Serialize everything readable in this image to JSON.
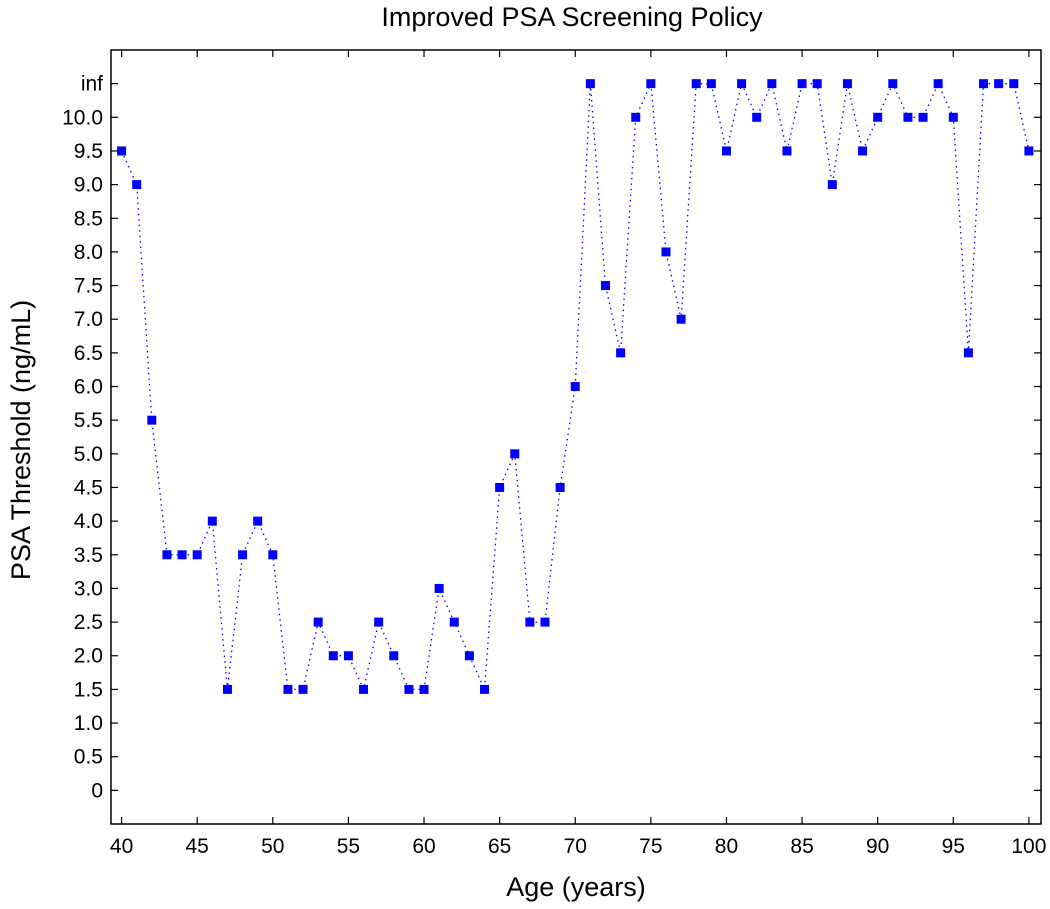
{
  "chart_data": {
    "type": "line",
    "title": "Improved PSA Screening Policy",
    "xlabel": "Age (years)",
    "ylabel": "PSA Threshold (ng/mL)",
    "xlim": [
      39.3,
      100.8
    ],
    "ylim": [
      -0.5,
      11.0
    ],
    "x_ticks": [
      "40",
      "45",
      "50",
      "55",
      "60",
      "65",
      "70",
      "75",
      "80",
      "85",
      "90",
      "95",
      "100"
    ],
    "x_tick_values": [
      40,
      45,
      50,
      55,
      60,
      65,
      70,
      75,
      80,
      85,
      90,
      95,
      100
    ],
    "y_ticks": [
      "0",
      "0.5",
      "1.0",
      "1.5",
      "2.0",
      "2.5",
      "3.0",
      "3.5",
      "4.0",
      "4.5",
      "5.0",
      "5.5",
      "6.0",
      "6.5",
      "7.0",
      "7.5",
      "8.0",
      "8.5",
      "9.0",
      "9.5",
      "10.0",
      "inf"
    ],
    "y_tick_values": [
      0,
      0.5,
      1.0,
      1.5,
      2.0,
      2.5,
      3.0,
      3.5,
      4.0,
      4.5,
      5.0,
      5.5,
      6.0,
      6.5,
      7.0,
      7.5,
      8.0,
      8.5,
      9.0,
      9.5,
      10.0,
      10.5
    ],
    "inf_plot_value": 10.5,
    "series": [
      {
        "name": "PSA threshold",
        "color": "#0000ff",
        "line_style": "dotted",
        "marker": "square",
        "x": [
          40,
          41,
          42,
          43,
          44,
          45,
          46,
          47,
          48,
          49,
          50,
          51,
          52,
          53,
          54,
          55,
          56,
          57,
          58,
          59,
          60,
          61,
          62,
          63,
          64,
          65,
          66,
          67,
          68,
          69,
          70,
          71,
          72,
          73,
          74,
          75,
          76,
          77,
          78,
          79,
          80,
          81,
          82,
          83,
          84,
          85,
          86,
          87,
          88,
          89,
          90,
          91,
          92,
          93,
          94,
          95,
          96,
          97,
          98,
          99,
          100
        ],
        "y": [
          9.5,
          9.0,
          5.5,
          3.5,
          3.5,
          3.5,
          4.0,
          1.5,
          3.5,
          4.0,
          3.5,
          1.5,
          1.5,
          2.5,
          2.0,
          2.0,
          1.5,
          2.5,
          2.0,
          1.5,
          1.5,
          3.0,
          2.5,
          2.0,
          1.5,
          4.5,
          5.0,
          2.5,
          2.5,
          4.5,
          6.0,
          "inf",
          7.5,
          6.5,
          10.0,
          "inf",
          8.0,
          7.0,
          "inf",
          "inf",
          9.5,
          "inf",
          10.0,
          "inf",
          9.5,
          "inf",
          "inf",
          9.0,
          "inf",
          9.5,
          10.0,
          "inf",
          10.0,
          10.0,
          "inf",
          10.0,
          6.5,
          "inf",
          "inf",
          "inf",
          9.5
        ]
      }
    ]
  }
}
